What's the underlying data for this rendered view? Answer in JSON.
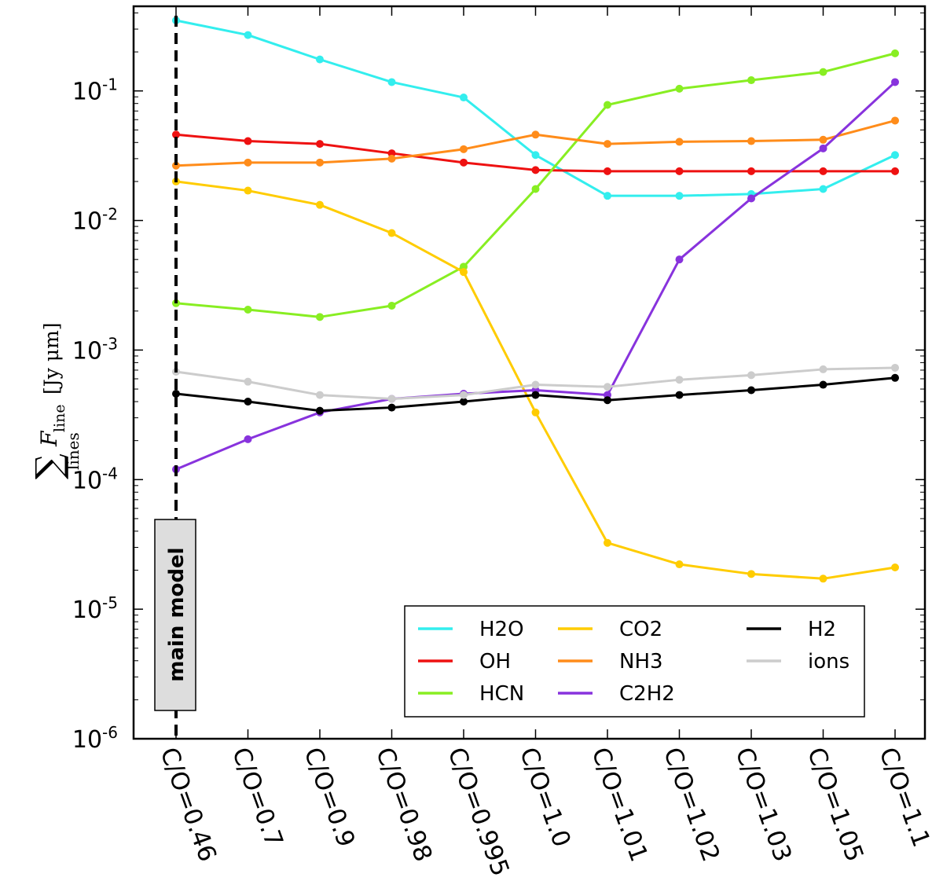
{
  "chart_data": {
    "type": "line",
    "title": "",
    "xlabel": "",
    "ylabel": {
      "sum_symbol": "∑",
      "subscript_lines": "lines",
      "F": "F",
      "subscript_F": "line",
      "units": "[Jy μm]"
    },
    "yscale": "log",
    "ylim": [
      1e-06,
      0.45
    ],
    "y_ticks": [
      {
        "base": "10",
        "exp": "-6",
        "value": 1e-06
      },
      {
        "base": "10",
        "exp": "-5",
        "value": 1e-05
      },
      {
        "base": "10",
        "exp": "-4",
        "value": 0.0001
      },
      {
        "base": "10",
        "exp": "-3",
        "value": 0.001
      },
      {
        "base": "10",
        "exp": "-2",
        "value": 0.01
      },
      {
        "base": "10",
        "exp": "-1",
        "value": 0.1
      }
    ],
    "categories": [
      "C/O=0.46",
      "C/O=0.7",
      "C/O=0.9",
      "C/O=0.98",
      "C/O=0.995",
      "C/O=1.0",
      "C/O=1.01",
      "C/O=1.02",
      "C/O=1.03",
      "C/O=1.05",
      "C/O=1.1"
    ],
    "series": [
      {
        "name": "H2O",
        "color": "#33eeee",
        "values": [
          0.35,
          0.27,
          0.175,
          0.117,
          0.089,
          0.032,
          0.0155,
          0.0155,
          0.016,
          0.0175,
          0.032
        ]
      },
      {
        "name": "OH",
        "color": "#ee1111",
        "values": [
          0.046,
          0.041,
          0.039,
          0.033,
          0.028,
          0.0245,
          0.024,
          0.024,
          0.024,
          0.024,
          0.024
        ]
      },
      {
        "name": "HCN",
        "color": "#88ee22",
        "values": [
          0.0023,
          0.00205,
          0.0018,
          0.0022,
          0.0044,
          0.0175,
          0.078,
          0.104,
          0.121,
          0.14,
          0.195
        ]
      },
      {
        "name": "CO2",
        "color": "#ffcc00",
        "values": [
          0.02,
          0.017,
          0.0132,
          0.008,
          0.004,
          0.00033,
          3.25e-05,
          2.22e-05,
          1.87e-05,
          1.72e-05,
          2.1e-05
        ]
      },
      {
        "name": "NH3",
        "color": "#ff8c1a",
        "values": [
          0.0265,
          0.028,
          0.028,
          0.03,
          0.0355,
          0.046,
          0.039,
          0.0405,
          0.041,
          0.042,
          0.059
        ]
      },
      {
        "name": "C2H2",
        "color": "#8833dd",
        "values": [
          0.00012,
          0.000205,
          0.00033,
          0.00042,
          0.00046,
          0.00049,
          0.00045,
          0.005,
          0.0148,
          0.036,
          0.117
        ]
      },
      {
        "name": "H2",
        "color": "#000000",
        "values": [
          0.00046,
          0.0004,
          0.00034,
          0.00036,
          0.0004,
          0.00045,
          0.00041,
          0.00045,
          0.00049,
          0.00054,
          0.00061
        ]
      },
      {
        "name": "ions",
        "color": "#cccccc",
        "values": [
          0.00068,
          0.00057,
          0.00045,
          0.00042,
          0.00045,
          0.00054,
          0.00052,
          0.00059,
          0.00064,
          0.00071,
          0.00073
        ]
      }
    ],
    "legend": {
      "placement": "bottom-right",
      "columns": [
        [
          "H2O",
          "OH",
          "HCN"
        ],
        [
          "CO2",
          "NH3",
          "C2H2"
        ],
        [
          "H2",
          "ions"
        ]
      ]
    },
    "annotations": [
      {
        "text": "main model",
        "category": "C/O=0.46",
        "style": "dashed vertical line"
      }
    ]
  }
}
